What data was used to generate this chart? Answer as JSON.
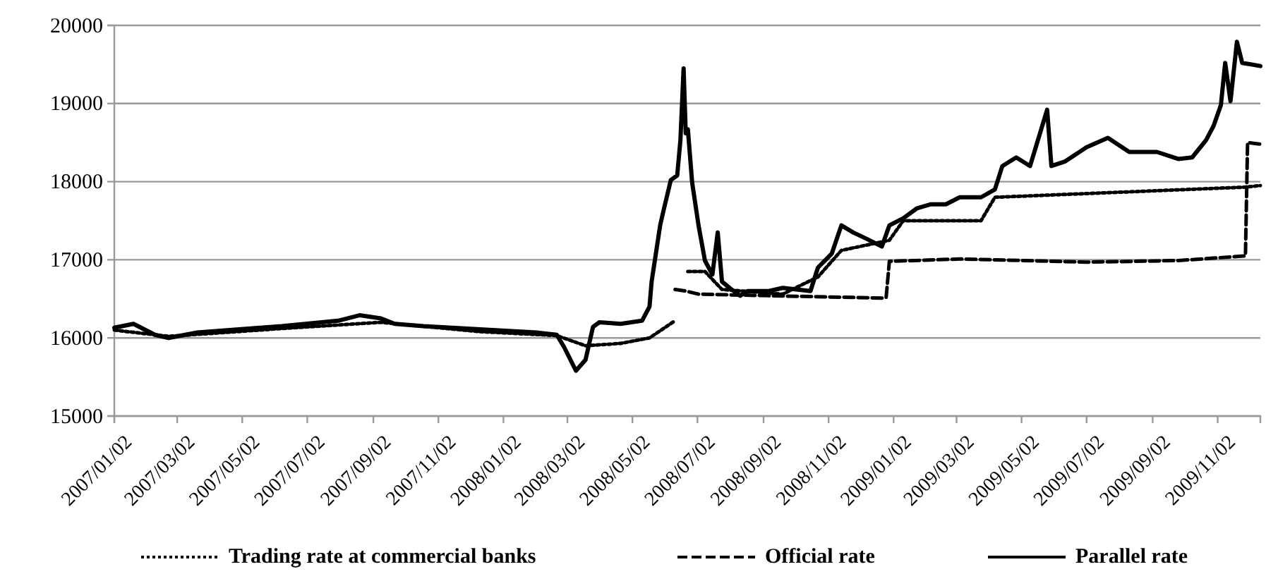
{
  "chart_data": {
    "type": "line",
    "legend": "bottom",
    "grid": "y",
    "ylim": [
      15000,
      20000
    ],
    "yticks": [
      15000,
      16000,
      17000,
      18000,
      19000,
      20000
    ],
    "xlim": [
      "2007-01-02",
      "2009-12-12"
    ],
    "xticks": [
      {
        "value": "2007-01-02",
        "label": "2007/01/02"
      },
      {
        "value": "2007-03-02",
        "label": "2007/03/02"
      },
      {
        "value": "2007-05-02",
        "label": "2007/05/02"
      },
      {
        "value": "2007-07-02",
        "label": "2007/07/02"
      },
      {
        "value": "2007-09-02",
        "label": "2007/09/02"
      },
      {
        "value": "2007-11-02",
        "label": "2007/11/02"
      },
      {
        "value": "2008-01-02",
        "label": "2008/01/02"
      },
      {
        "value": "2008-03-02",
        "label": "2008/03/02"
      },
      {
        "value": "2008-05-02",
        "label": "2008/05/02"
      },
      {
        "value": "2008-07-02",
        "label": "2008/07/02"
      },
      {
        "value": "2008-09-02",
        "label": "2008/09/02"
      },
      {
        "value": "2008-11-02",
        "label": "2008/11/02"
      },
      {
        "value": "2009-01-02",
        "label": "2009/01/02"
      },
      {
        "value": "2009-03-02",
        "label": "2009/03/02"
      },
      {
        "value": "2009-05-02",
        "label": "2009/05/02"
      },
      {
        "value": "2009-07-02",
        "label": "2009/07/02"
      },
      {
        "value": "2009-09-02",
        "label": "2009/09/02"
      },
      {
        "value": "2009-11-02",
        "label": "2009/11/02"
      }
    ],
    "series": [
      {
        "name": "Trading rate at commercial banks",
        "color": "#000000",
        "line_style": "dotted",
        "x": [
          "2007-01-02",
          "2007-02-22",
          "2007-06-08",
          "2007-09-09",
          "2007-12-11",
          "2008-02-21",
          "2008-03-19",
          "2008-04-21",
          "2008-05-18",
          "2008-06-11",
          "2008-06-16",
          "2008-06-23",
          "2008-07-09",
          "2008-07-25",
          "2008-09-20",
          "2008-10-23",
          "2008-11-14",
          "2008-12-29",
          "2009-01-11",
          "2009-03-25",
          "2009-04-07",
          "2009-11-28",
          "2009-12-12"
        ],
        "values": [
          16100,
          16020,
          16120,
          16200,
          16080,
          16030,
          15900,
          15930,
          16000,
          16220,
          null,
          16850,
          16850,
          16620,
          16560,
          16780,
          17120,
          17250,
          17500,
          17500,
          17800,
          17930,
          17950
        ]
      },
      {
        "name": "Official rate",
        "color": "#000000",
        "line_style": "dashed",
        "x": [
          "2008-06-11",
          "2008-06-21",
          "2008-07-03",
          "2008-09-07",
          "2008-12-22",
          "2008-12-26",
          "2008-12-29",
          "2009-03-05",
          "2009-07-02",
          "2009-09-26",
          "2009-11-28",
          "2009-11-30",
          "2009-12-12"
        ],
        "values": [
          16620,
          16600,
          16560,
          16540,
          16510,
          16520,
          16980,
          17010,
          16970,
          16990,
          17050,
          18500,
          18480
        ]
      },
      {
        "name": "Parallel rate",
        "color": "#000000",
        "line_style": "solid",
        "x": [
          "2007-01-02",
          "2007-01-20",
          "2007-02-09",
          "2007-02-22",
          "2007-03-21",
          "2007-04-29",
          "2007-06-08",
          "2007-07-31",
          "2007-08-20",
          "2007-09-09",
          "2007-09-22",
          "2007-10-19",
          "2007-12-11",
          "2008-02-02",
          "2008-02-21",
          "2008-02-28",
          "2008-03-10",
          "2008-03-19",
          "2008-03-26",
          "2008-04-01",
          "2008-04-21",
          "2008-05-11",
          "2008-05-18",
          "2008-05-20",
          "2008-05-24",
          "2008-05-28",
          "2008-05-31",
          "2008-06-07",
          "2008-06-13",
          "2008-06-16",
          "2008-06-19",
          "2008-06-21",
          "2008-06-23",
          "2008-06-27",
          "2008-07-03",
          "2008-07-09",
          "2008-07-16",
          "2008-07-21",
          "2008-07-25",
          "2008-08-02",
          "2008-08-11",
          "2008-08-18",
          "2008-09-07",
          "2008-09-20",
          "2008-10-16",
          "2008-10-23",
          "2008-11-05",
          "2008-11-14",
          "2008-11-25",
          "2008-12-09",
          "2008-12-22",
          "2008-12-29",
          "2009-01-11",
          "2009-01-24",
          "2009-02-06",
          "2009-02-20",
          "2009-03-05",
          "2009-03-25",
          "2009-04-07",
          "2009-04-14",
          "2009-04-27",
          "2009-05-10",
          "2009-05-26",
          "2009-05-30",
          "2009-06-12",
          "2009-07-02",
          "2009-07-22",
          "2009-08-11",
          "2009-09-06",
          "2009-09-26",
          "2009-10-09",
          "2009-10-22",
          "2009-10-29",
          "2009-11-05",
          "2009-11-09",
          "2009-11-14",
          "2009-11-20",
          "2009-11-25",
          "2009-12-12"
        ],
        "values": [
          16130,
          16180,
          16040,
          16000,
          16070,
          16110,
          16150,
          16220,
          16290,
          16250,
          16180,
          16150,
          16110,
          16070,
          16040,
          15880,
          15580,
          15720,
          16140,
          16200,
          16180,
          16220,
          16400,
          16720,
          17080,
          17440,
          17620,
          18020,
          18080,
          18530,
          19450,
          18620,
          18670,
          17990,
          17440,
          16990,
          16810,
          17350,
          16720,
          16630,
          16540,
          16600,
          16600,
          16640,
          16600,
          16900,
          17080,
          17440,
          17350,
          17260,
          17170,
          17440,
          17530,
          17660,
          17710,
          17710,
          17800,
          17800,
          17900,
          18200,
          18310,
          18200,
          18920,
          18200,
          18260,
          18440,
          18560,
          18380,
          18380,
          18290,
          18310,
          18530,
          18710,
          18980,
          19520,
          19030,
          19790,
          19520,
          19480
        ]
      }
    ]
  }
}
